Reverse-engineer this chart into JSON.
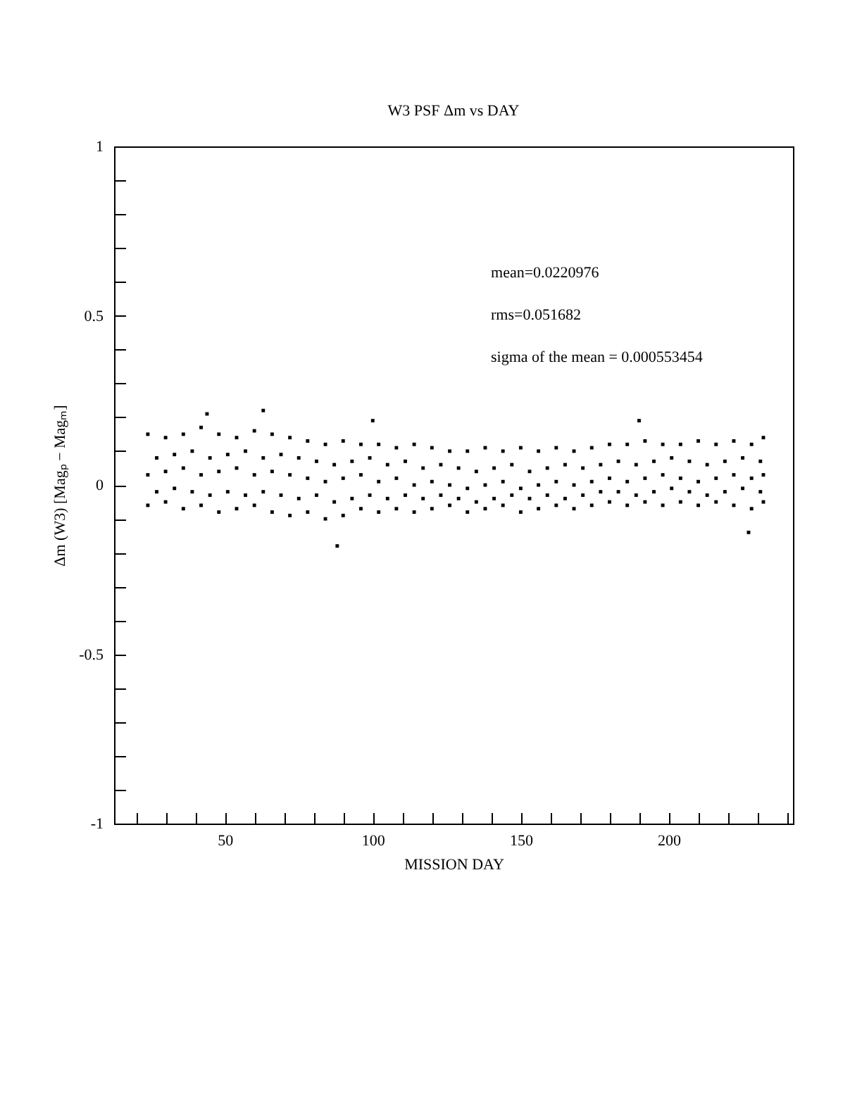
{
  "chart_data": {
    "type": "scatter",
    "title": "W3 PSF Δm vs DAY",
    "xlabel": "MISSION DAY",
    "ylabel": "Δm (W3) [Magₚ − Magₘ]",
    "annotations": [
      "mean=0.0220976",
      "rms=0.051682",
      "sigma of the mean = 0.000553454"
    ],
    "xlim": [
      12.6,
      242
    ],
    "ylim": [
      -1,
      1
    ],
    "xticks": [
      {
        "value": 20,
        "label": null
      },
      {
        "value": 30,
        "label": null
      },
      {
        "value": 40,
        "label": null
      },
      50,
      {
        "value": 60,
        "label": null
      },
      {
        "value": 70,
        "label": null
      },
      {
        "value": 80,
        "label": null
      },
      {
        "value": 90,
        "label": null
      },
      100,
      {
        "value": 110,
        "label": null
      },
      {
        "value": 120,
        "label": null
      },
      {
        "value": 130,
        "label": null
      },
      {
        "value": 140,
        "label": null
      },
      150,
      {
        "value": 160,
        "label": null
      },
      {
        "value": 170,
        "label": null
      },
      {
        "value": 180,
        "label": null
      },
      {
        "value": 190,
        "label": null
      },
      200,
      {
        "value": 210,
        "label": null
      },
      {
        "value": 220,
        "label": null
      },
      {
        "value": 230,
        "label": null
      },
      {
        "value": 240,
        "label": null
      }
    ],
    "yticks": [
      -1,
      {
        "value": -0.9,
        "label": null
      },
      {
        "value": -0.8,
        "label": null
      },
      {
        "value": -0.7,
        "label": null
      },
      {
        "value": -0.6,
        "label": null
      },
      -0.5,
      {
        "value": -0.4,
        "label": null
      },
      {
        "value": -0.3,
        "label": null
      },
      {
        "value": -0.2,
        "label": null
      },
      {
        "value": -0.1,
        "label": null
      },
      0,
      {
        "value": 0.1,
        "label": null
      },
      {
        "value": 0.2,
        "label": null
      },
      {
        "value": 0.3,
        "label": null
      },
      {
        "value": 0.4,
        "label": null
      },
      0.5,
      {
        "value": 0.6,
        "label": null
      },
      {
        "value": 0.7,
        "label": null
      },
      {
        "value": 0.8,
        "label": null
      },
      {
        "value": 0.9,
        "label": null
      },
      1
    ],
    "marker": "square",
    "grid": false,
    "legend": false,
    "series": [
      {
        "color": "#000000",
        "x": [
          24,
          30,
          36,
          42,
          48,
          54,
          60,
          66,
          72,
          78,
          84,
          90,
          96,
          102,
          108,
          114,
          120,
          126,
          132,
          138,
          144,
          150,
          156,
          162,
          168,
          174,
          180,
          186,
          192,
          198,
          204,
          210,
          216,
          222,
          228,
          232,
          27,
          33,
          39,
          45,
          51,
          57,
          63,
          69,
          75,
          81,
          87,
          93,
          99,
          105,
          111,
          117,
          123,
          129,
          135,
          141,
          147,
          153,
          159,
          165,
          171,
          177,
          183,
          189,
          195,
          201,
          207,
          213,
          219,
          225,
          231,
          24,
          30,
          36,
          42,
          48,
          54,
          60,
          66,
          72,
          78,
          84,
          90,
          96,
          102,
          108,
          114,
          120,
          126,
          132,
          138,
          144,
          150,
          156,
          162,
          168,
          174,
          180,
          186,
          192,
          198,
          204,
          210,
          216,
          222,
          228,
          232,
          27,
          33,
          39,
          45,
          51,
          57,
          63,
          69,
          75,
          81,
          87,
          93,
          99,
          105,
          111,
          117,
          123,
          129,
          135,
          141,
          147,
          153,
          159,
          165,
          171,
          177,
          183,
          189,
          195,
          201,
          207,
          213,
          219,
          225,
          231,
          24,
          30,
          36,
          42,
          48,
          54,
          60,
          66,
          72,
          78,
          84,
          90,
          96,
          102,
          108,
          114,
          120,
          126,
          132,
          138,
          144,
          150,
          156,
          162,
          168,
          174,
          180,
          186,
          192,
          198,
          204,
          210,
          216,
          222,
          228,
          232,
          44,
          63,
          88,
          100,
          190,
          227
        ],
        "values": [
          0.15,
          0.14,
          0.15,
          0.17,
          0.15,
          0.14,
          0.16,
          0.15,
          0.14,
          0.13,
          0.12,
          0.13,
          0.12,
          0.12,
          0.11,
          0.12,
          0.11,
          0.1,
          0.1,
          0.11,
          0.1,
          0.11,
          0.1,
          0.11,
          0.1,
          0.11,
          0.12,
          0.12,
          0.13,
          0.12,
          0.12,
          0.13,
          0.12,
          0.13,
          0.12,
          0.14,
          0.08,
          0.09,
          0.1,
          0.08,
          0.09,
          0.1,
          0.08,
          0.09,
          0.08,
          0.07,
          0.06,
          0.07,
          0.08,
          0.06,
          0.07,
          0.05,
          0.06,
          0.05,
          0.04,
          0.05,
          0.06,
          0.04,
          0.05,
          0.06,
          0.05,
          0.06,
          0.07,
          0.06,
          0.07,
          0.08,
          0.07,
          0.06,
          0.07,
          0.08,
          0.07,
          0.03,
          0.04,
          0.05,
          0.03,
          0.04,
          0.05,
          0.03,
          0.04,
          0.03,
          0.02,
          0.01,
          0.02,
          0.03,
          0.01,
          0.02,
          0.0,
          0.01,
          0.0,
          -0.01,
          0.0,
          0.01,
          -0.01,
          0.0,
          0.01,
          0.0,
          0.01,
          0.02,
          0.01,
          0.02,
          0.03,
          0.02,
          0.01,
          0.02,
          0.03,
          0.02,
          0.03,
          -0.02,
          -0.01,
          -0.02,
          -0.03,
          -0.02,
          -0.03,
          -0.02,
          -0.03,
          -0.04,
          -0.03,
          -0.05,
          -0.04,
          -0.03,
          -0.04,
          -0.03,
          -0.04,
          -0.03,
          -0.04,
          -0.05,
          -0.04,
          -0.03,
          -0.04,
          -0.03,
          -0.04,
          -0.03,
          -0.02,
          -0.02,
          -0.03,
          -0.02,
          -0.01,
          -0.02,
          -0.03,
          -0.02,
          -0.01,
          -0.02,
          -0.06,
          -0.05,
          -0.07,
          -0.06,
          -0.08,
          -0.07,
          -0.06,
          -0.08,
          -0.09,
          -0.08,
          -0.1,
          -0.09,
          -0.07,
          -0.08,
          -0.07,
          -0.08,
          -0.07,
          -0.06,
          -0.08,
          -0.07,
          -0.06,
          -0.08,
          -0.07,
          -0.06,
          -0.07,
          -0.06,
          -0.05,
          -0.06,
          -0.05,
          -0.06,
          -0.05,
          -0.06,
          -0.05,
          -0.06,
          -0.07,
          -0.05,
          0.21,
          0.22,
          -0.18,
          0.19,
          0.19,
          -0.14
        ]
      }
    ]
  }
}
